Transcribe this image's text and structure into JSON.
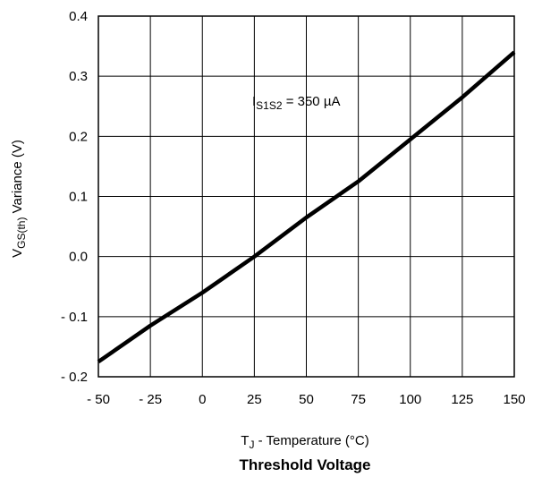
{
  "chart_data": {
    "type": "line",
    "title": "Threshold Voltage",
    "xlabel": {
      "main": "T",
      "sub": "J",
      "rest": " - Temperature (°C)"
    },
    "ylabel": {
      "main": "V",
      "sub": "GS(th)",
      "rest": "  Variance (V)"
    },
    "xlim": [
      -50,
      150
    ],
    "ylim": [
      -0.2,
      0.4
    ],
    "x_ticks": [
      {
        "value": -50,
        "label": "- 50"
      },
      {
        "value": -25,
        "label": "- 25"
      },
      {
        "value": 0,
        "label": "0"
      },
      {
        "value": 25,
        "label": "25"
      },
      {
        "value": 50,
        "label": "50"
      },
      {
        "value": 75,
        "label": "75"
      },
      {
        "value": 100,
        "label": "100"
      },
      {
        "value": 125,
        "label": "125"
      },
      {
        "value": 150,
        "label": "150"
      }
    ],
    "y_ticks": [
      {
        "value": 0.4,
        "label": "0.4"
      },
      {
        "value": 0.3,
        "label": "0.3"
      },
      {
        "value": 0.2,
        "label": "0.2"
      },
      {
        "value": 0.1,
        "label": "0.1"
      },
      {
        "value": 0.0,
        "label": "0.0"
      },
      {
        "value": -0.1,
        "label": "- 0.1"
      },
      {
        "value": -0.2,
        "label": "- 0.2"
      }
    ],
    "grid": true,
    "annotation": {
      "main": "I",
      "sub": "S1S2",
      "rest": " = 350 µA"
    },
    "series": [
      {
        "x": [
          -50,
          -25,
          0,
          25,
          50,
          75,
          100,
          125,
          150
        ],
        "y": [
          -0.175,
          -0.115,
          -0.06,
          0.0,
          0.065,
          0.125,
          0.195,
          0.265,
          0.34
        ]
      }
    ]
  }
}
